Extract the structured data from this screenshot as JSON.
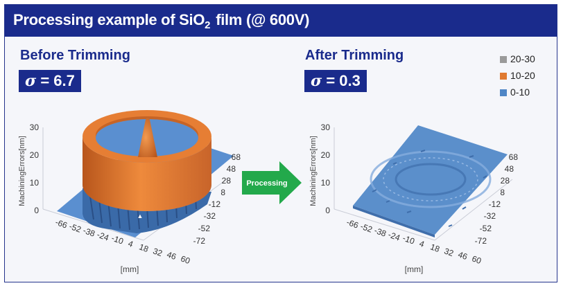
{
  "banner": {
    "title_pre": "Processing example of SiO",
    "title_sub": "2",
    "title_post": "film (@ 600V)"
  },
  "before": {
    "title": "Before Trimming",
    "sigma_symbol": "σ",
    "sigma_rest": " = 6.7",
    "z_label": "MachiningErrors[nm]",
    "x_unit": "[mm]",
    "z_ticks": [
      "30",
      "20",
      "10",
      "0"
    ],
    "x_ticks": [
      "-66",
      "-52",
      "-38",
      "-24",
      "-10",
      "4",
      "18",
      "32",
      "46",
      "60"
    ],
    "y_ticks": [
      "68",
      "48",
      "28",
      "8",
      "-12",
      "-32",
      "-52",
      "-72"
    ]
  },
  "arrow": {
    "label": "Processing",
    "color": "#23a94b"
  },
  "after": {
    "title": "After Trimming",
    "sigma_symbol": "σ",
    "sigma_rest": " = 0.3",
    "z_label": "MachiningErrors[nm]",
    "x_unit": "[mm]",
    "z_ticks": [
      "30",
      "20",
      "10",
      "0"
    ],
    "x_ticks": [
      "-66",
      "-52",
      "-38",
      "-24",
      "-10",
      "4",
      "18",
      "32",
      "46",
      "60"
    ],
    "y_ticks": [
      "68",
      "48",
      "28",
      "8",
      "-12",
      "-32",
      "-52",
      "-72"
    ]
  },
  "legend": [
    {
      "label": "20-30",
      "color": "#9a9a9a"
    },
    {
      "label": "10-20",
      "color": "#e07a30"
    },
    {
      "label": "0-10",
      "color": "#4f86c6"
    }
  ],
  "colors": {
    "banner": "#1a2b8c",
    "surface_low": "#4f86c6",
    "surface_mid": "#e07a30"
  }
}
